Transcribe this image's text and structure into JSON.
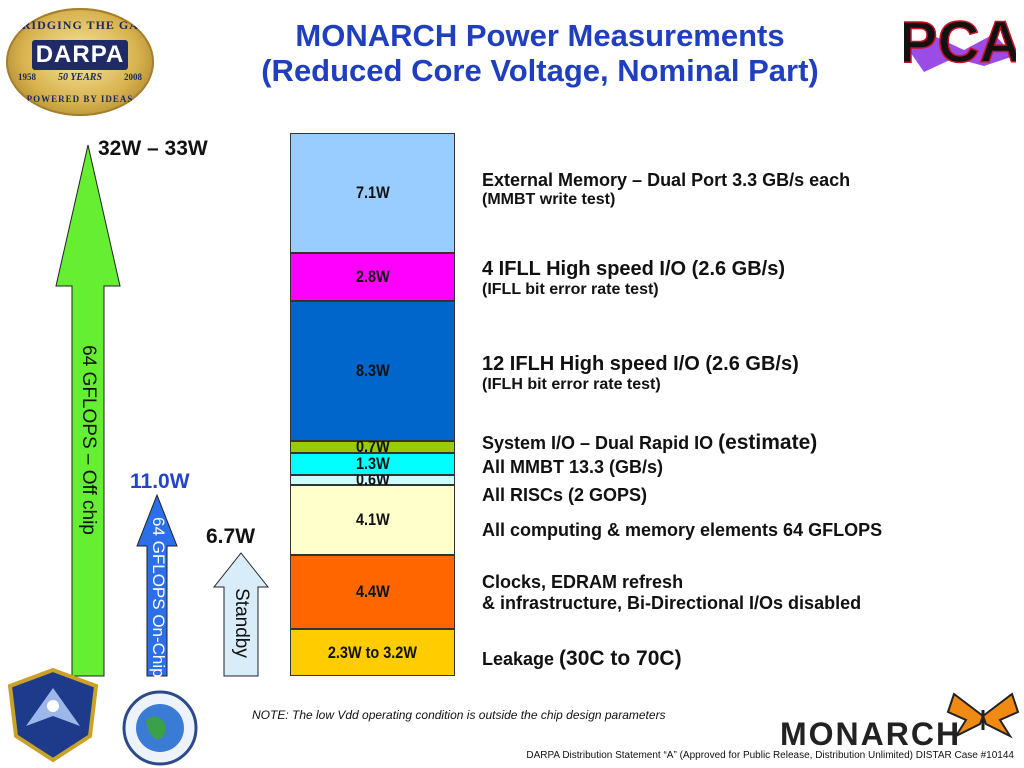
{
  "title": {
    "line1": "MONARCH Power Measurements",
    "line2": "(Reduced Core Voltage, Nominal Part)"
  },
  "logos": {
    "darpa": {
      "ring_top": "BRIDGING THE GAP",
      "name": "DARPA",
      "years_left": "1958",
      "years_right": "2008",
      "middle": "50 YEARS",
      "ring_bottom": "POWERED BY IDEAS"
    },
    "pca": "PCA",
    "monarch": "MONARCH"
  },
  "arrows": {
    "off_chip": {
      "label": "64 GFLOPS – Off chip",
      "value": "32W – 33W",
      "color": "#66ee33"
    },
    "on_chip": {
      "label": "64 GFLOPS On-Chip",
      "value": "11.0W",
      "value_color": "#2244cc",
      "color": "#2d6fe8"
    },
    "standby": {
      "label": "Standby",
      "value": "6.7W",
      "color": "#d8ecfa"
    }
  },
  "chart_data": {
    "type": "bar",
    "stacked": true,
    "title": "MONARCH Power Measurements (Reduced Core Voltage, Nominal Part)",
    "unit": "W",
    "segments": [
      {
        "label": "2.3W to 3.2W",
        "value": 2.75,
        "color": "#ffcc00",
        "desc1": "Leakage ",
        "desc1_big": "(30C to 70C)",
        "desc2": ""
      },
      {
        "label": "4.4W",
        "value": 4.4,
        "color": "#ff6600",
        "desc1": "Clocks, EDRAM refresh",
        "desc1_big": "",
        "desc2": "& infrastructure, Bi-Directional I/Os disabled"
      },
      {
        "label": "4.1W",
        "value": 4.1,
        "color": "#ffffcc",
        "desc1": "All computing & memory elements 64 GFLOPS",
        "desc1_big": "",
        "desc2": ""
      },
      {
        "label": "0.6W",
        "value": 0.6,
        "color": "#ccffff",
        "desc1": "All RISCs (2 GOPS)",
        "desc1_big": "",
        "desc2": ""
      },
      {
        "label": "1.3W",
        "value": 1.3,
        "color": "#00ffff",
        "desc1": "All MMBT 13.3 (GB/s)",
        "desc1_big": "",
        "desc2": ""
      },
      {
        "label": "0.7W",
        "value": 0.7,
        "color": "#99cc00",
        "desc1": "System I/O – Dual Rapid IO ",
        "desc1_big": "(estimate)",
        "desc2": ""
      },
      {
        "label": "8.3W",
        "value": 8.3,
        "color": "#0066cc",
        "desc1": "12 IFLH High speed I/O (2.6 GB/s)",
        "desc1_big": "",
        "desc2": "(IFLH bit error rate test)"
      },
      {
        "label": "2.8W",
        "value": 2.8,
        "color": "#ff00ff",
        "desc1": "4 IFLL High speed I/O (2.6 GB/s)",
        "desc1_big": "",
        "desc2": "(IFLL bit error rate test)"
      },
      {
        "label": "7.1W",
        "value": 7.1,
        "color": "#99ccff",
        "desc1": "External Memory – Dual Port 3.3 GB/s each",
        "desc1_big": "",
        "desc2": "(MMBT write test)"
      }
    ]
  },
  "note": "NOTE: The low Vdd operating condition is outside the chip design parameters",
  "footer": "DARPA Distribution Statement “A” (Approved for Public Release, Distribution Unlimited) DISTAR Case #10144"
}
